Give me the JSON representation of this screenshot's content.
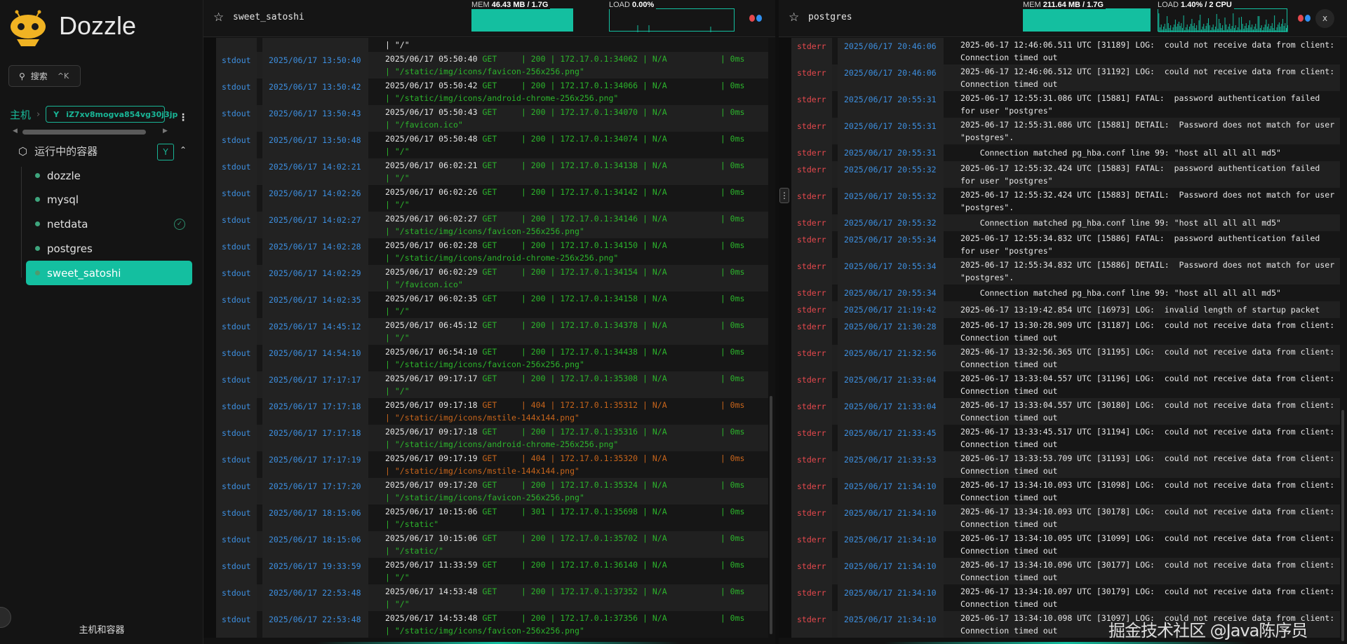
{
  "app": {
    "name": "Dozzle",
    "accent": "#14bfa0"
  },
  "sidebar": {
    "search_label": "搜索",
    "search_shortcut": "^K",
    "breadcrumb_root": "主机",
    "host": "iZ7xv8mogva854vg30j3jp",
    "group_label": "运行中的容器",
    "containers": [
      {
        "name": "dozzle",
        "active": false,
        "pinned": false
      },
      {
        "name": "mysql",
        "active": false,
        "pinned": false
      },
      {
        "name": "netdata",
        "active": false,
        "pinned": true
      },
      {
        "name": "postgres",
        "active": false,
        "pinned": false
      },
      {
        "name": "sweet_satoshi",
        "active": true,
        "pinned": false
      }
    ],
    "footer": "主机和容器"
  },
  "panels": [
    {
      "name": "sweet_satoshi",
      "mem_label": "MEM",
      "mem": "46.43 MB / 1.7G",
      "mem_fill": 1.0,
      "load_label": "LOAD",
      "load": "0.00%",
      "closable": false,
      "partial_tail": "| \"/\"",
      "rows": [
        {
          "stream": "stdout",
          "date": "2025/06/17 13:50:40",
          "ts": "2025/06/17 05:50:40",
          "method": "GET",
          "status": "200",
          "client": "172.17.0.1:34062",
          "user": "N/A",
          "latency": "0ms",
          "path": "\"/static/img/icons/favicon-256x256.png\"",
          "level": "ok"
        },
        {
          "stream": "stdout",
          "date": "2025/06/17 13:50:42",
          "ts": "2025/06/17 05:50:42",
          "method": "GET",
          "status": "200",
          "client": "172.17.0.1:34066",
          "user": "N/A",
          "latency": "0ms",
          "path": "\"/static/img/icons/android-chrome-256x256.png\"",
          "level": "ok"
        },
        {
          "stream": "stdout",
          "date": "2025/06/17 13:50:43",
          "ts": "2025/06/17 05:50:43",
          "method": "GET",
          "status": "200",
          "client": "172.17.0.1:34070",
          "user": "N/A",
          "latency": "0ms",
          "path": "\"/favicon.ico\"",
          "level": "ok"
        },
        {
          "stream": "stdout",
          "date": "2025/06/17 13:50:48",
          "ts": "2025/06/17 05:50:48",
          "method": "GET",
          "status": "200",
          "client": "172.17.0.1:34074",
          "user": "N/A",
          "latency": "0ms",
          "path": "\"/\"",
          "level": "ok"
        },
        {
          "stream": "stdout",
          "date": "2025/06/17 14:02:21",
          "ts": "2025/06/17 06:02:21",
          "method": "GET",
          "status": "200",
          "client": "172.17.0.1:34138",
          "user": "N/A",
          "latency": "0ms",
          "path": "\"/\"",
          "level": "ok"
        },
        {
          "stream": "stdout",
          "date": "2025/06/17 14:02:26",
          "ts": "2025/06/17 06:02:26",
          "method": "GET",
          "status": "200",
          "client": "172.17.0.1:34142",
          "user": "N/A",
          "latency": "0ms",
          "path": "\"/\"",
          "level": "ok"
        },
        {
          "stream": "stdout",
          "date": "2025/06/17 14:02:27",
          "ts": "2025/06/17 06:02:27",
          "method": "GET",
          "status": "200",
          "client": "172.17.0.1:34146",
          "user": "N/A",
          "latency": "0ms",
          "path": "\"/static/img/icons/favicon-256x256.png\"",
          "level": "ok"
        },
        {
          "stream": "stdout",
          "date": "2025/06/17 14:02:28",
          "ts": "2025/06/17 06:02:28",
          "method": "GET",
          "status": "200",
          "client": "172.17.0.1:34150",
          "user": "N/A",
          "latency": "0ms",
          "path": "\"/static/img/icons/android-chrome-256x256.png\"",
          "level": "ok"
        },
        {
          "stream": "stdout",
          "date": "2025/06/17 14:02:29",
          "ts": "2025/06/17 06:02:29",
          "method": "GET",
          "status": "200",
          "client": "172.17.0.1:34154",
          "user": "N/A",
          "latency": "0ms",
          "path": "\"/favicon.ico\"",
          "level": "ok"
        },
        {
          "stream": "stdout",
          "date": "2025/06/17 14:02:35",
          "ts": "2025/06/17 06:02:35",
          "method": "GET",
          "status": "200",
          "client": "172.17.0.1:34158",
          "user": "N/A",
          "latency": "0ms",
          "path": "\"/\"",
          "level": "ok"
        },
        {
          "stream": "stdout",
          "date": "2025/06/17 14:45:12",
          "ts": "2025/06/17 06:45:12",
          "method": "GET",
          "status": "200",
          "client": "172.17.0.1:34378",
          "user": "N/A",
          "latency": "0ms",
          "path": "\"/\"",
          "level": "ok"
        },
        {
          "stream": "stdout",
          "date": "2025/06/17 14:54:10",
          "ts": "2025/06/17 06:54:10",
          "method": "GET",
          "status": "200",
          "client": "172.17.0.1:34438",
          "user": "N/A",
          "latency": "0ms",
          "path": "\"/static/img/icons/favicon-256x256.png\"",
          "level": "ok"
        },
        {
          "stream": "stdout",
          "date": "2025/06/17 17:17:17",
          "ts": "2025/06/17 09:17:17",
          "method": "GET",
          "status": "200",
          "client": "172.17.0.1:35308",
          "user": "N/A",
          "latency": "0ms",
          "path": "\"/\"",
          "level": "ok"
        },
        {
          "stream": "stdout",
          "date": "2025/06/17 17:17:18",
          "ts": "2025/06/17 09:17:18",
          "method": "GET",
          "status": "404",
          "client": "172.17.0.1:35312",
          "user": "N/A",
          "latency": "0ms",
          "path": "\"/static/img/icons/mstile-144x144.png\"",
          "level": "warn"
        },
        {
          "stream": "stdout",
          "date": "2025/06/17 17:17:18",
          "ts": "2025/06/17 09:17:18",
          "method": "GET",
          "status": "200",
          "client": "172.17.0.1:35316",
          "user": "N/A",
          "latency": "0ms",
          "path": "\"/static/img/icons/android-chrome-256x256.png\"",
          "level": "ok"
        },
        {
          "stream": "stdout",
          "date": "2025/06/17 17:17:19",
          "ts": "2025/06/17 09:17:19",
          "method": "GET",
          "status": "404",
          "client": "172.17.0.1:35320",
          "user": "N/A",
          "latency": "0ms",
          "path": "\"/static/img/icons/mstile-144x144.png\"",
          "level": "warn"
        },
        {
          "stream": "stdout",
          "date": "2025/06/17 17:17:20",
          "ts": "2025/06/17 09:17:20",
          "method": "GET",
          "status": "200",
          "client": "172.17.0.1:35324",
          "user": "N/A",
          "latency": "0ms",
          "path": "\"/static/img/icons/favicon-256x256.png\"",
          "level": "ok"
        },
        {
          "stream": "stdout",
          "date": "2025/06/17 18:15:06",
          "ts": "2025/06/17 10:15:06",
          "method": "GET",
          "status": "301",
          "client": "172.17.0.1:35698",
          "user": "N/A",
          "latency": "0ms",
          "path": "\"/static\"",
          "level": "ok"
        },
        {
          "stream": "stdout",
          "date": "2025/06/17 18:15:06",
          "ts": "2025/06/17 10:15:06",
          "method": "GET",
          "status": "200",
          "client": "172.17.0.1:35702",
          "user": "N/A",
          "latency": "0ms",
          "path": "\"/static/\"",
          "level": "ok"
        },
        {
          "stream": "stdout",
          "date": "2025/06/17 19:33:59",
          "ts": "2025/06/17 11:33:59",
          "method": "GET",
          "status": "200",
          "client": "172.17.0.1:36140",
          "user": "N/A",
          "latency": "0ms",
          "path": "\"/\"",
          "level": "ok"
        },
        {
          "stream": "stdout",
          "date": "2025/06/17 22:53:48",
          "ts": "2025/06/17 14:53:48",
          "method": "GET",
          "status": "200",
          "client": "172.17.0.1:37352",
          "user": "N/A",
          "latency": "0ms",
          "path": "\"/\"",
          "level": "ok"
        },
        {
          "stream": "stdout",
          "date": "2025/06/17 22:53:48",
          "ts": "2025/06/17 14:53:48",
          "method": "GET",
          "status": "200",
          "client": "172.17.0.1:37356",
          "user": "N/A",
          "latency": "0ms",
          "path": "\"/static/img/icons/favicon-256x256.png\"",
          "level": "ok"
        }
      ]
    },
    {
      "name": "postgres",
      "mem_label": "MEM",
      "mem": "211.64 MB / 1.7G",
      "mem_fill": 1.0,
      "load_label": "LOAD",
      "load": "1.40% / 2 CPU",
      "closable": true,
      "close_label": "x",
      "rows": [
        {
          "stream": "stderr",
          "date": "2025/06/17 20:46:06",
          "text": "2025-06-17 12:46:06.511 UTC [31189] LOG:  could not receive data from client: Connection timed out"
        },
        {
          "stream": "stderr",
          "date": "2025/06/17 20:46:06",
          "text": "2025-06-17 12:46:06.512 UTC [31192] LOG:  could not receive data from client: Connection timed out"
        },
        {
          "stream": "stderr",
          "date": "2025/06/17 20:55:31",
          "text": "2025-06-17 12:55:31.086 UTC [15881] FATAL:  password authentication failed for user \"postgres\""
        },
        {
          "stream": "stderr",
          "date": "2025/06/17 20:55:31",
          "text": "2025-06-17 12:55:31.086 UTC [15881] DETAIL:  Password does not match for user \"postgres\"."
        },
        {
          "stream": "stderr",
          "date": "2025/06/17 20:55:31",
          "text": "    Connection matched pg_hba.conf line 99: \"host all all all md5\""
        },
        {
          "stream": "stderr",
          "date": "2025/06/17 20:55:32",
          "text": "2025-06-17 12:55:32.424 UTC [15883] FATAL:  password authentication failed for user \"postgres\""
        },
        {
          "stream": "stderr",
          "date": "2025/06/17 20:55:32",
          "text": "2025-06-17 12:55:32.424 UTC [15883] DETAIL:  Password does not match for user \"postgres\"."
        },
        {
          "stream": "stderr",
          "date": "2025/06/17 20:55:32",
          "text": "    Connection matched pg_hba.conf line 99: \"host all all all md5\""
        },
        {
          "stream": "stderr",
          "date": "2025/06/17 20:55:34",
          "text": "2025-06-17 12:55:34.832 UTC [15886] FATAL:  password authentication failed for user \"postgres\""
        },
        {
          "stream": "stderr",
          "date": "2025/06/17 20:55:34",
          "text": "2025-06-17 12:55:34.832 UTC [15886] DETAIL:  Password does not match for user \"postgres\"."
        },
        {
          "stream": "stderr",
          "date": "2025/06/17 20:55:34",
          "text": "    Connection matched pg_hba.conf line 99: \"host all all all md5\""
        },
        {
          "stream": "stderr",
          "date": "2025/06/17 21:19:42",
          "text": "2025-06-17 13:19:42.854 UTC [16973] LOG:  invalid length of startup packet"
        },
        {
          "stream": "stderr",
          "date": "2025/06/17 21:30:28",
          "text": "2025-06-17 13:30:28.909 UTC [31187] LOG:  could not receive data from client: Connection timed out"
        },
        {
          "stream": "stderr",
          "date": "2025/06/17 21:32:56",
          "text": "2025-06-17 13:32:56.365 UTC [31195] LOG:  could not receive data from client: Connection timed out"
        },
        {
          "stream": "stderr",
          "date": "2025/06/17 21:33:04",
          "text": "2025-06-17 13:33:04.557 UTC [31196] LOG:  could not receive data from client: Connection timed out"
        },
        {
          "stream": "stderr",
          "date": "2025/06/17 21:33:04",
          "text": "2025-06-17 13:33:04.557 UTC [30180] LOG:  could not receive data from client: Connection timed out"
        },
        {
          "stream": "stderr",
          "date": "2025/06/17 21:33:45",
          "text": "2025-06-17 13:33:45.517 UTC [31194] LOG:  could not receive data from client: Connection timed out"
        },
        {
          "stream": "stderr",
          "date": "2025/06/17 21:33:53",
          "text": "2025-06-17 13:33:53.709 UTC [31193] LOG:  could not receive data from client: Connection timed out"
        },
        {
          "stream": "stderr",
          "date": "2025/06/17 21:34:10",
          "text": "2025-06-17 13:34:10.093 UTC [31098] LOG:  could not receive data from client: Connection timed out"
        },
        {
          "stream": "stderr",
          "date": "2025/06/17 21:34:10",
          "text": "2025-06-17 13:34:10.093 UTC [30178] LOG:  could not receive data from client: Connection timed out"
        },
        {
          "stream": "stderr",
          "date": "2025/06/17 21:34:10",
          "text": "2025-06-17 13:34:10.095 UTC [31099] LOG:  could not receive data from client: Connection timed out"
        },
        {
          "stream": "stderr",
          "date": "2025/06/17 21:34:10",
          "text": "2025-06-17 13:34:10.096 UTC [30177] LOG:  could not receive data from client: Connection timed out"
        },
        {
          "stream": "stderr",
          "date": "2025/06/17 21:34:10",
          "text": "2025-06-17 13:34:10.097 UTC [30179] LOG:  could not receive data from client: Connection timed out"
        },
        {
          "stream": "stderr",
          "date": "2025/06/17 21:34:10",
          "text": "2025-06-17 13:34:10.098 UTC [31097] LOG:  could not receive data from client: Connection timed out"
        }
      ]
    }
  ],
  "colors": {
    "stdout": "#3d8fe0",
    "stderr": "#e5484d",
    "ok": "#2cb52c",
    "warn": "#c8651b",
    "dot_red": "#e5484d",
    "dot_blue": "#2f8ff0"
  },
  "watermark": "掘金技术社区 @Java陈序员"
}
